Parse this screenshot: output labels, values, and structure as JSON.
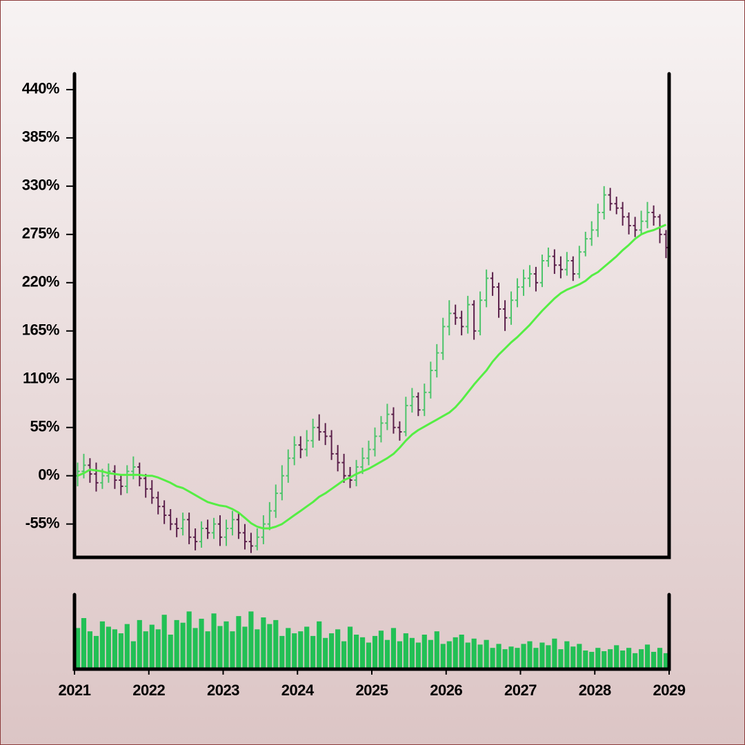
{
  "chart_data": {
    "type": "ohlc",
    "x": [
      2021.042,
      2021.125,
      2021.208,
      2021.292,
      2021.375,
      2021.458,
      2021.542,
      2021.625,
      2021.708,
      2021.792,
      2021.875,
      2021.958,
      2022.042,
      2022.125,
      2022.208,
      2022.292,
      2022.375,
      2022.458,
      2022.542,
      2022.625,
      2022.708,
      2022.792,
      2022.875,
      2022.958,
      2023.042,
      2023.125,
      2023.208,
      2023.292,
      2023.375,
      2023.458,
      2023.542,
      2023.625,
      2023.708,
      2023.792,
      2023.875,
      2023.958,
      2024.042,
      2024.125,
      2024.208,
      2024.292,
      2024.375,
      2024.458,
      2024.542,
      2024.625,
      2024.708,
      2024.792,
      2024.875,
      2024.958,
      2025.042,
      2025.125,
      2025.208,
      2025.292,
      2025.375,
      2025.458,
      2025.542,
      2025.625,
      2025.708,
      2025.792,
      2025.875,
      2025.958,
      2026.042,
      2026.125,
      2026.208,
      2026.292,
      2026.375,
      2026.458,
      2026.542,
      2026.625,
      2026.708,
      2026.792,
      2026.875,
      2026.958,
      2027.042,
      2027.125,
      2027.208,
      2027.292,
      2027.375,
      2027.458,
      2027.542,
      2027.625,
      2027.708,
      2027.792,
      2027.875,
      2027.958,
      2028.042,
      2028.125,
      2028.208,
      2028.292,
      2028.375,
      2028.458,
      2028.542,
      2028.625,
      2028.708,
      2028.792,
      2028.875,
      2028.958
    ],
    "open": [
      0,
      5,
      12,
      2,
      -8,
      0,
      5,
      -5,
      -12,
      5,
      10,
      -3,
      -15,
      -25,
      -35,
      -45,
      -55,
      -60,
      -50,
      -70,
      -75,
      -60,
      -65,
      -55,
      -70,
      -60,
      -50,
      -65,
      -75,
      -80,
      -70,
      -55,
      -40,
      -20,
      0,
      20,
      35,
      30,
      40,
      55,
      50,
      45,
      25,
      15,
      0,
      -5,
      10,
      20,
      30,
      45,
      60,
      70,
      55,
      50,
      80,
      90,
      75,
      95,
      120,
      140,
      170,
      185,
      180,
      170,
      195,
      165,
      200,
      225,
      215,
      190,
      180,
      200,
      215,
      225,
      230,
      220,
      245,
      250,
      240,
      235,
      245,
      230,
      255,
      270,
      280,
      300,
      320,
      310,
      305,
      295,
      285,
      280,
      290,
      300,
      295,
      275
    ],
    "high": [
      15,
      25,
      20,
      15,
      8,
      14,
      12,
      2,
      12,
      22,
      15,
      2,
      -5,
      -18,
      -28,
      -38,
      -48,
      -42,
      -42,
      -60,
      -52,
      -50,
      -48,
      -45,
      -50,
      -40,
      -42,
      -55,
      -65,
      -60,
      -45,
      -30,
      -10,
      12,
      30,
      45,
      45,
      52,
      65,
      70,
      60,
      52,
      35,
      25,
      10,
      18,
      32,
      40,
      55,
      68,
      82,
      78,
      62,
      90,
      100,
      95,
      105,
      130,
      150,
      180,
      200,
      195,
      188,
      205,
      200,
      210,
      235,
      232,
      220,
      200,
      210,
      225,
      235,
      240,
      238,
      252,
      260,
      258,
      250,
      255,
      250,
      262,
      278,
      290,
      310,
      330,
      328,
      318,
      312,
      300,
      295,
      302,
      312,
      308,
      298,
      280
    ],
    "low": [
      -12,
      -3,
      -8,
      -18,
      -15,
      -8,
      -15,
      -22,
      -20,
      -4,
      -12,
      -25,
      -32,
      -44,
      -55,
      -62,
      -70,
      -68,
      -78,
      -85,
      -82,
      -72,
      -72,
      -80,
      -80,
      -68,
      -72,
      -84,
      -88,
      -85,
      -78,
      -62,
      -48,
      -28,
      -8,
      12,
      20,
      22,
      32,
      40,
      35,
      18,
      5,
      -8,
      -14,
      -12,
      2,
      12,
      22,
      38,
      52,
      48,
      40,
      45,
      72,
      68,
      68,
      88,
      112,
      132,
      160,
      172,
      160,
      162,
      155,
      160,
      192,
      205,
      180,
      165,
      172,
      192,
      205,
      215,
      210,
      215,
      238,
      230,
      225,
      228,
      222,
      225,
      250,
      262,
      272,
      292,
      302,
      298,
      285,
      275,
      272,
      275,
      282,
      285,
      265,
      248
    ],
    "close": [
      5,
      12,
      2,
      -8,
      0,
      5,
      -5,
      -12,
      5,
      10,
      -3,
      -15,
      -25,
      -35,
      -45,
      -55,
      -60,
      -50,
      -70,
      -75,
      -60,
      -65,
      -55,
      -70,
      -60,
      -50,
      -65,
      -75,
      -80,
      -70,
      -55,
      -40,
      -20,
      0,
      20,
      35,
      30,
      40,
      55,
      50,
      45,
      25,
      15,
      0,
      -5,
      10,
      20,
      30,
      45,
      60,
      70,
      55,
      50,
      80,
      90,
      75,
      95,
      120,
      140,
      170,
      185,
      180,
      170,
      195,
      165,
      200,
      225,
      215,
      190,
      180,
      200,
      215,
      225,
      230,
      220,
      245,
      250,
      240,
      235,
      245,
      230,
      255,
      270,
      280,
      300,
      320,
      310,
      305,
      295,
      285,
      280,
      290,
      300,
      295,
      275,
      260
    ],
    "up_color": "#4cc46a",
    "down_color": "#5a1f4a",
    "moving_average": {
      "color": "#55ee44",
      "values": [
        0,
        3,
        7,
        6,
        5,
        3,
        2,
        1,
        1,
        1,
        1,
        0,
        0,
        -2,
        -5,
        -8,
        -12,
        -14,
        -18,
        -22,
        -26,
        -30,
        -32,
        -34,
        -35,
        -38,
        -42,
        -48,
        -54,
        -58,
        -60,
        -60,
        -58,
        -55,
        -50,
        -45,
        -40,
        -35,
        -30,
        -24,
        -20,
        -15,
        -10,
        -5,
        -2,
        2,
        5,
        8,
        12,
        16,
        20,
        25,
        32,
        40,
        47,
        52,
        56,
        60,
        64,
        68,
        72,
        78,
        86,
        95,
        104,
        112,
        120,
        130,
        138,
        145,
        152,
        158,
        165,
        172,
        180,
        188,
        195,
        202,
        208,
        212,
        215,
        218,
        222,
        228,
        232,
        238,
        244,
        250,
        257,
        263,
        270,
        275,
        278,
        280,
        283,
        286
      ]
    },
    "volume": {
      "color": "#22c055",
      "ylim": [
        0,
        100
      ],
      "values": [
        60,
        75,
        55,
        48,
        70,
        62,
        58,
        52,
        66,
        40,
        72,
        55,
        65,
        58,
        80,
        50,
        72,
        68,
        85,
        60,
        74,
        55,
        82,
        63,
        70,
        55,
        78,
        62,
        85,
        58,
        76,
        66,
        72,
        48,
        60,
        52,
        55,
        62,
        48,
        70,
        45,
        52,
        58,
        40,
        62,
        50,
        46,
        38,
        48,
        56,
        42,
        60,
        40,
        52,
        45,
        38,
        50,
        42,
        55,
        36,
        40,
        46,
        50,
        38,
        44,
        35,
        42,
        30,
        36,
        28,
        32,
        30,
        36,
        40,
        30,
        38,
        34,
        44,
        28,
        40,
        32,
        36,
        26,
        24,
        30,
        25,
        28,
        34,
        26,
        30,
        22,
        28,
        35,
        24,
        30,
        22
      ]
    },
    "xlim": [
      2021,
      2029
    ],
    "xticks": [
      2021,
      2022,
      2023,
      2024,
      2025,
      2026,
      2027,
      2028,
      2029
    ],
    "ylim": [
      -93,
      458
    ],
    "yticks": [
      {
        "value": -55,
        "label": "-55%"
      },
      {
        "value": 0,
        "label": "0%"
      },
      {
        "value": 55,
        "label": "55%"
      },
      {
        "value": 110,
        "label": "110%"
      },
      {
        "value": 165,
        "label": "165%"
      },
      {
        "value": 220,
        "label": "220%"
      },
      {
        "value": 275,
        "label": "275%"
      },
      {
        "value": 330,
        "label": "330%"
      },
      {
        "value": 385,
        "label": "385%"
      },
      {
        "value": 440,
        "label": "440%"
      }
    ]
  }
}
